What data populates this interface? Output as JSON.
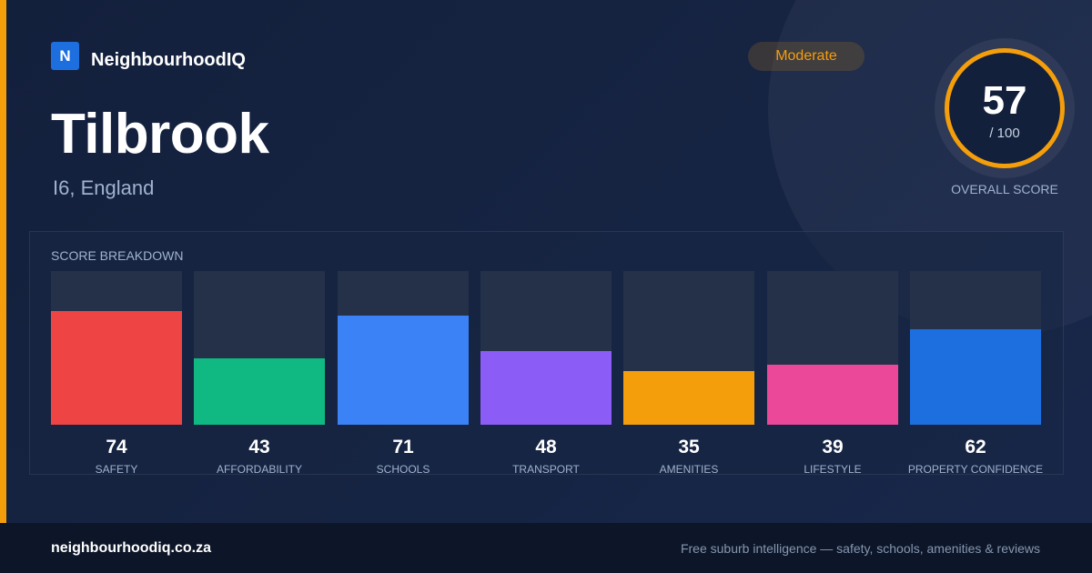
{
  "brand": {
    "logo_letter": "N",
    "name": "NeighbourhoodIQ",
    "logo_color": "#1d6fe0"
  },
  "header": {
    "title": "Tilbrook",
    "subtitle": "I6, England",
    "badge": "Moderate",
    "accent_color": "#f59e0b"
  },
  "overall": {
    "value": "57",
    "max": "/ 100",
    "caption": "OVERALL SCORE"
  },
  "breakdown": {
    "title": "SCORE BREAKDOWN",
    "items": [
      {
        "label": "SAFETY",
        "value": 74,
        "color": "#ef4444"
      },
      {
        "label": "AFFORDABILITY",
        "value": 43,
        "color": "#10b981"
      },
      {
        "label": "SCHOOLS",
        "value": 71,
        "color": "#3b82f6"
      },
      {
        "label": "TRANSPORT",
        "value": 48,
        "color": "#8b5cf6"
      },
      {
        "label": "AMENITIES",
        "value": 35,
        "color": "#f59e0b"
      },
      {
        "label": "LIFESTYLE",
        "value": 39,
        "color": "#ec4899"
      },
      {
        "label": "PROPERTY CONFIDENCE",
        "value": 62,
        "color": "#1d6fe0"
      }
    ]
  },
  "footer": {
    "domain": "neighbourhoodiq.co.za",
    "tagline": "Free suburb intelligence — safety, schools, amenities & reviews"
  }
}
